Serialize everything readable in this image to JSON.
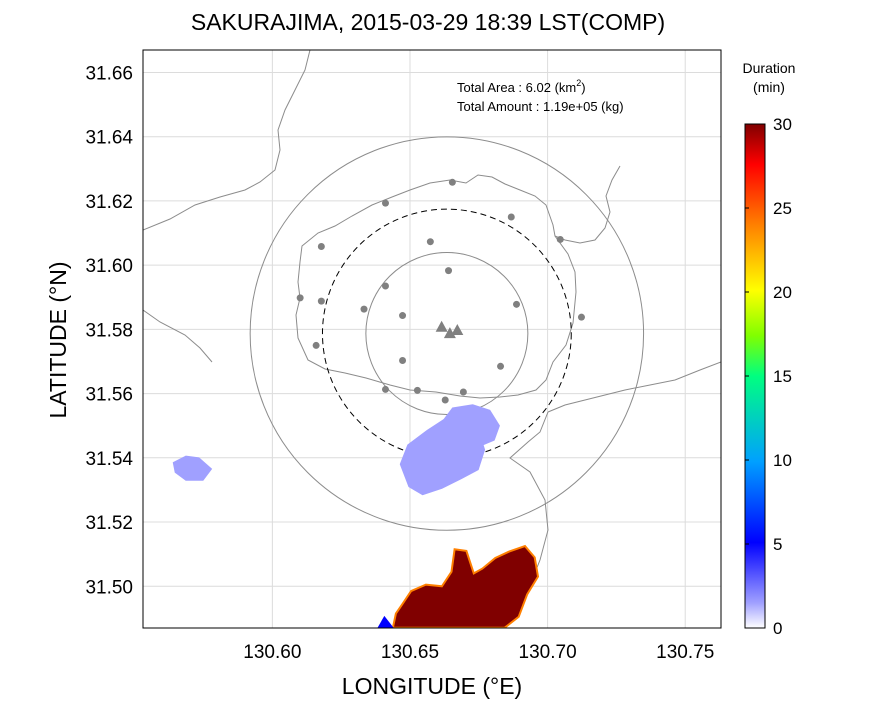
{
  "chart_data": {
    "type": "heatmap",
    "title": "SAKURAJIMA, 2015-03-29 18:39 LST(COMP)",
    "xlabel": "LONGITUDE (°E)",
    "ylabel": "LATITUDE (°N)",
    "xlim": [
      130.553,
      130.763
    ],
    "ylim": [
      31.487,
      31.667
    ],
    "x_ticks": [
      "130.60",
      "130.65",
      "130.70",
      "130.75"
    ],
    "y_ticks": [
      "31.50",
      "31.52",
      "31.54",
      "31.56",
      "31.58",
      "31.60",
      "31.62",
      "31.64",
      "31.66"
    ],
    "x_tick_values": [
      130.6,
      130.65,
      130.7,
      130.75
    ],
    "y_tick_values": [
      31.5,
      31.52,
      31.54,
      31.56,
      31.58,
      31.6,
      31.62,
      31.64,
      31.66
    ],
    "grid": true,
    "annotation": {
      "area_label": "Total Area   : 6.02 (km",
      "area_sup": "2",
      "area_close": ")",
      "amount_label": "Total Amount : 1.19e+05 (kg)"
    },
    "colorbar": {
      "title_line1": "Duration",
      "title_line2": "(min)",
      "range": [
        0,
        30
      ],
      "ticks": [
        "0",
        "5",
        "10",
        "15",
        "20",
        "25",
        "30"
      ],
      "tick_values": [
        0,
        5,
        10,
        15,
        20,
        25,
        30
      ],
      "colors": [
        "#ffffff",
        "#a0a0ff",
        "#0000ff",
        "#00a0ff",
        "#00ff80",
        "#80ff00",
        "#ffff00",
        "#ff8000",
        "#ff0000",
        "#800000"
      ]
    },
    "vent": {
      "lon": 130.6634,
      "lat": 31.5787
    },
    "vent_markers": [
      {
        "lon": 130.6615,
        "lat": 31.5805
      },
      {
        "lon": 130.6645,
        "lat": 31.5785
      },
      {
        "lon": 130.6672,
        "lat": 31.5795
      }
    ],
    "stations": [
      {
        "lon": 130.6654,
        "lat": 31.6258
      },
      {
        "lon": 130.6411,
        "lat": 31.6193
      },
      {
        "lon": 130.6868,
        "lat": 31.615
      },
      {
        "lon": 130.6574,
        "lat": 31.6073
      },
      {
        "lon": 130.7046,
        "lat": 31.608
      },
      {
        "lon": 130.6178,
        "lat": 31.6058
      },
      {
        "lon": 130.664,
        "lat": 31.5983
      },
      {
        "lon": 130.6101,
        "lat": 31.5898
      },
      {
        "lon": 130.6178,
        "lat": 31.5888
      },
      {
        "lon": 130.6411,
        "lat": 31.5935
      },
      {
        "lon": 130.6887,
        "lat": 31.5878
      },
      {
        "lon": 130.6333,
        "lat": 31.5863
      },
      {
        "lon": 130.6473,
        "lat": 31.5843
      },
      {
        "lon": 130.7123,
        "lat": 31.5838
      },
      {
        "lon": 130.6159,
        "lat": 31.575
      },
      {
        "lon": 130.6473,
        "lat": 31.5703
      },
      {
        "lon": 130.6829,
        "lat": 31.5685
      },
      {
        "lon": 130.6411,
        "lat": 31.5613
      },
      {
        "lon": 130.6527,
        "lat": 31.561
      },
      {
        "lon": 130.6694,
        "lat": 31.5605
      },
      {
        "lon": 130.6628,
        "lat": 31.558
      }
    ],
    "range_circles": [
      {
        "radius_km": 2.8,
        "style": "solid"
      },
      {
        "radius_km": 4.3,
        "style": "dashed"
      },
      {
        "radius_km": 6.8,
        "style": "solid"
      }
    ],
    "series": [
      {
        "name": "ash deposit — main (southern mainland)",
        "duration_min": 30,
        "polygon": [
          [
            130.6438,
            31.4871
          ],
          [
            130.6449,
            31.4915
          ],
          [
            130.6473,
            31.4945
          ],
          [
            130.6504,
            31.4985
          ],
          [
            130.6558,
            31.5005
          ],
          [
            130.6616,
            31.5
          ],
          [
            130.6651,
            31.5045
          ],
          [
            130.6662,
            31.5115
          ],
          [
            130.6705,
            31.511
          ],
          [
            130.6732,
            31.504
          ],
          [
            130.6763,
            31.5055
          ],
          [
            130.681,
            31.5088
          ],
          [
            130.686,
            31.5108
          ],
          [
            130.6918,
            31.5125
          ],
          [
            130.6953,
            31.509
          ],
          [
            130.6965,
            31.503
          ],
          [
            130.6926,
            31.4975
          ],
          [
            130.6895,
            31.4905
          ],
          [
            130.6844,
            31.4871
          ]
        ]
      },
      {
        "name": "ash deposit — southern cone",
        "duration_min": 6,
        "polygon": [
          [
            130.6384,
            31.4871
          ],
          [
            130.6407,
            31.4905
          ],
          [
            130.6438,
            31.4871
          ]
        ]
      },
      {
        "name": "ash deposit — central plume",
        "duration_min": 4,
        "polygon": [
          [
            130.6465,
            31.538
          ],
          [
            130.6492,
            31.544
          ],
          [
            130.6562,
            31.5485
          ],
          [
            130.6624,
            31.552
          ],
          [
            130.6686,
            31.5525
          ],
          [
            130.6748,
            31.5488
          ],
          [
            130.6771,
            31.5425
          ],
          [
            130.6748,
            31.5363
          ],
          [
            130.6686,
            31.5335
          ],
          [
            130.6616,
            31.5305
          ],
          [
            130.6546,
            31.5285
          ],
          [
            130.6496,
            31.531
          ]
        ]
      },
      {
        "name": "ash deposit — northeast patches",
        "duration_min": 2,
        "polygon": [
          [
            130.6624,
            31.552
          ],
          [
            130.6655,
            31.5555
          ],
          [
            130.6728,
            31.5565
          ],
          [
            130.679,
            31.5548
          ],
          [
            130.6825,
            31.55
          ],
          [
            130.6806,
            31.5455
          ],
          [
            130.6763,
            31.544
          ],
          [
            130.6705,
            31.5475
          ]
        ]
      },
      {
        "name": "ash deposit — western scatter",
        "duration_min": 2,
        "polygon": [
          [
            130.564,
            31.5385
          ],
          [
            130.5686,
            31.5405
          ],
          [
            130.5733,
            31.54
          ],
          [
            130.5779,
            31.5365
          ],
          [
            130.5748,
            31.533
          ],
          [
            130.5686,
            31.533
          ],
          [
            130.5647,
            31.5355
          ]
        ]
      }
    ]
  }
}
